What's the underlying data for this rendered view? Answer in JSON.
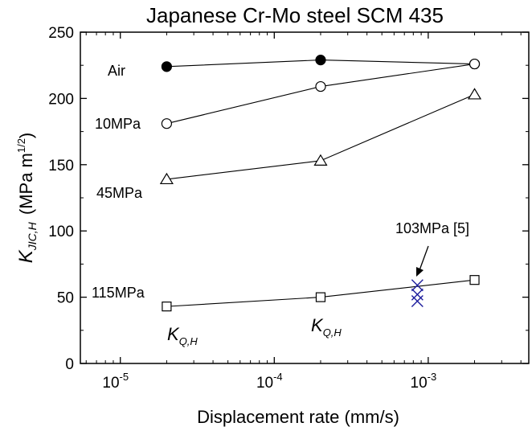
{
  "chart_data": {
    "type": "scatter",
    "title": "Japanese Cr-Mo steel SCM 435",
    "xlabel": "Displacement rate (mm/s)",
    "ylabel": {
      "main": "K",
      "sub": "JIC,H",
      "units": "(MPa m",
      "sup": "1/2",
      "close": ")"
    },
    "xscale": "log",
    "xlim": [
      5.5e-06,
      0.0045
    ],
    "ylim": [
      0,
      250
    ],
    "xticks": [
      {
        "value": 1e-05,
        "base": "10",
        "exp": "-5"
      },
      {
        "value": 0.0001,
        "base": "10",
        "exp": "-4"
      },
      {
        "value": 0.001,
        "base": "10",
        "exp": "-3"
      }
    ],
    "yticks": [
      0,
      50,
      100,
      150,
      200,
      250
    ],
    "grid": false,
    "series": [
      {
        "name": "Air",
        "marker": "filled-circle",
        "x": [
          2e-05,
          0.0002,
          0.002
        ],
        "y": [
          224,
          229,
          226
        ],
        "marker_fill": [
          "#000000",
          "#000000",
          "#ffffff"
        ]
      },
      {
        "name": "10MPa",
        "marker": "circle",
        "x": [
          2e-05,
          0.0002,
          0.002
        ],
        "y": [
          181,
          209,
          226
        ]
      },
      {
        "name": "45MPa",
        "marker": "triangle",
        "x": [
          2e-05,
          0.0002,
          0.002
        ],
        "y": [
          139,
          153,
          203
        ]
      },
      {
        "name": "115MPa",
        "marker": "square",
        "x": [
          2e-05,
          0.0002,
          0.002
        ],
        "y": [
          43,
          50,
          63
        ]
      },
      {
        "name": "103MPa [5]",
        "marker": "x",
        "color": "#1f1f9e",
        "x": [
          0.00085,
          0.00085,
          0.00085
        ],
        "y": [
          59,
          52,
          47
        ]
      }
    ],
    "annotations": [
      {
        "text": "Air",
        "series": "Air"
      },
      {
        "text": "10MPa",
        "series": "10MPa"
      },
      {
        "text": "45MPa",
        "series": "45MPa"
      },
      {
        "text": "115MPa",
        "series": "115MPa"
      },
      {
        "text": "103MPa [5]",
        "series": "103MPa [5]",
        "arrow": true
      }
    ],
    "kqh_labels": [
      {
        "main": "K",
        "sub": "Q,H"
      },
      {
        "main": "K",
        "sub": "Q,H"
      }
    ]
  }
}
